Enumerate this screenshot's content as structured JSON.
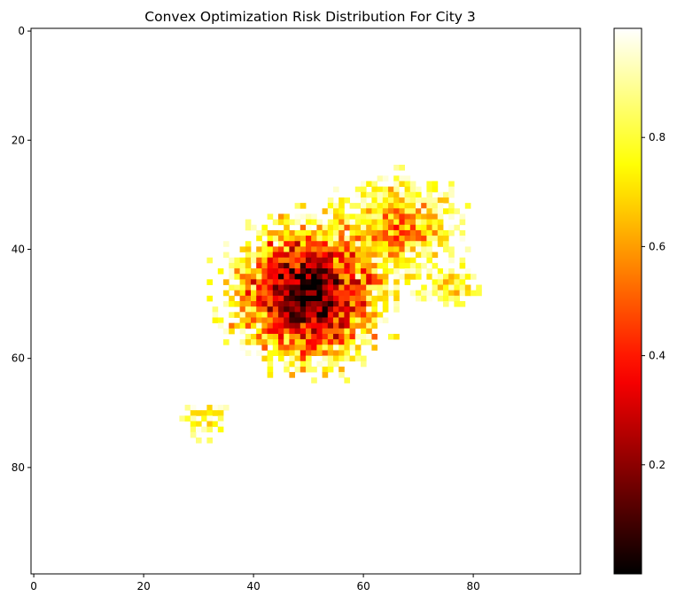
{
  "chart_data": {
    "type": "heatmap",
    "title": "Convex Optimization Risk Distribution For City 3",
    "xlabel": "",
    "ylabel": "",
    "grid_size": [
      100,
      100
    ],
    "xlim": [
      -0.5,
      99.5
    ],
    "ylim": [
      99.5,
      -0.5
    ],
    "x_ticks": [
      "0",
      "20",
      "40",
      "60",
      "80"
    ],
    "y_ticks": [
      "0",
      "20",
      "40",
      "60",
      "80"
    ],
    "colormap": "hot",
    "colorbar": {
      "range": [
        0.0,
        1.0
      ],
      "ticks": [
        "0.2",
        "0.4",
        "0.6",
        "0.8"
      ],
      "tick_values": [
        0.2,
        0.4,
        0.6,
        0.8
      ]
    },
    "background_value": 1.0,
    "clusters": [
      {
        "label": "main",
        "center": [
          50,
          48
        ],
        "radius_x": 16,
        "radius_y": 15,
        "min_value": 0.02
      },
      {
        "label": "upper-right arm",
        "center": [
          66,
          36
        ],
        "radius_x": 12,
        "radius_y": 10,
        "min_value": 0.55
      },
      {
        "label": "right arm",
        "center": [
          76,
          47
        ],
        "radius_x": 6,
        "radius_y": 4,
        "min_value": 0.75
      },
      {
        "label": "lower-left small",
        "center": [
          31,
          71
        ],
        "radius_x": 4,
        "radius_y": 4,
        "min_value": 0.75
      }
    ]
  }
}
